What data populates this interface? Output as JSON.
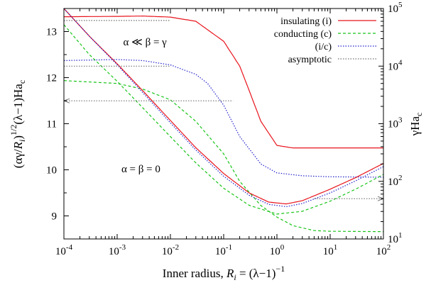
{
  "chart_data": {
    "type": "line",
    "xlabel_parts": [
      "Inner radius, ",
      "R",
      "i",
      " = (λ−1)",
      "−1"
    ],
    "ylabel_parts": [
      "(αγ/",
      "R",
      "i",
      ")",
      "1/2",
      "(λ−1)Ha",
      "c"
    ],
    "y2label_parts": [
      "γHa",
      "c"
    ],
    "x_scale": "log",
    "xlim": [
      0.0001,
      100
    ],
    "ylim": [
      8.5,
      13.5
    ],
    "y2_scale": "log",
    "y2lim": [
      10,
      100000
    ],
    "x_ticks": [
      {
        "value": 0.0001,
        "base": "10",
        "exp": "-4"
      },
      {
        "value": 0.001,
        "base": "10",
        "exp": "-3"
      },
      {
        "value": 0.01,
        "base": "10",
        "exp": "-2"
      },
      {
        "value": 0.1,
        "base": "10",
        "exp": "-1"
      },
      {
        "value": 1,
        "base": "10",
        "exp": "0"
      },
      {
        "value": 10,
        "base": "10",
        "exp": "1"
      },
      {
        "value": 100,
        "base": "10",
        "exp": "2"
      }
    ],
    "y_ticks": [
      9,
      10,
      11,
      12,
      13
    ],
    "y2_ticks": [
      {
        "value": 10,
        "base": "10",
        "exp": "1"
      },
      {
        "value": 100,
        "base": "10",
        "exp": "2"
      },
      {
        "value": 1000,
        "base": "10",
        "exp": "3"
      },
      {
        "value": 10000,
        "base": "10",
        "exp": "4"
      },
      {
        "value": 100000,
        "base": "10",
        "exp": "5"
      }
    ],
    "legend_position": "top-right",
    "legend": [
      {
        "label": "insulating (i)",
        "color": "#e8141c",
        "dash": "solid"
      },
      {
        "label": "conducting (c)",
        "color": "#18c418",
        "dash": "dashed"
      },
      {
        "label": "(i/c)",
        "color": "#2222cc",
        "dash": "dotted"
      },
      {
        "label": "asymptotic",
        "color": "#707070",
        "dash": "dotted"
      }
    ],
    "annotations": [
      {
        "text": "α ≪ β = γ",
        "x": 0.0013,
        "y": 12.7
      },
      {
        "text": "α = β = 0",
        "x": 0.0012,
        "y": 9.95
      }
    ],
    "series": [
      {
        "color": "#e8141c",
        "dash": "solid",
        "axis": "right",
        "x": [
          0.0001,
          0.001,
          0.003,
          0.01,
          0.03,
          0.1,
          0.2,
          0.3,
          0.5,
          1,
          2,
          3,
          10,
          100
        ],
        "y": [
          72000,
          73000,
          74000,
          71000,
          60000,
          27000,
          10000,
          3800,
          1100,
          420,
          380,
          380,
          380,
          380
        ]
      },
      {
        "color": "#18c418",
        "dash": "dashed",
        "axis": "right",
        "x": [
          0.0001,
          0.001,
          0.003,
          0.01,
          0.03,
          0.1,
          0.2,
          0.5,
          1,
          2,
          5,
          10,
          100
        ],
        "y": [
          5600,
          5000,
          4000,
          2600,
          1100,
          300,
          100,
          38,
          24,
          17,
          14,
          13.6,
          13.4
        ]
      },
      {
        "color": "#2222cc",
        "dash": "dotted",
        "axis": "right",
        "x": [
          0.0001,
          0.001,
          0.003,
          0.01,
          0.03,
          0.05,
          0.1,
          0.2,
          0.5,
          1,
          3,
          10,
          100
        ],
        "y": [
          12500,
          13000,
          12500,
          10500,
          7200,
          5000,
          2100,
          600,
          200,
          140,
          125,
          120,
          118
        ]
      },
      {
        "color": "#e8141c",
        "dash": "solid",
        "axis": "left",
        "x": [
          0.0001,
          0.0003,
          0.001,
          0.003,
          0.01,
          0.03,
          0.1,
          0.3,
          0.7,
          1.5,
          3,
          10,
          30,
          100
        ],
        "y": [
          13.5,
          12.9,
          12.3,
          11.72,
          11.07,
          10.48,
          9.92,
          9.5,
          9.3,
          9.26,
          9.33,
          9.58,
          9.83,
          10.14
        ]
      },
      {
        "color": "#2222cc",
        "dash": "dotted",
        "axis": "left",
        "x": [
          0.0001,
          0.0003,
          0.001,
          0.003,
          0.01,
          0.03,
          0.1,
          0.3,
          0.7,
          1.5,
          3,
          10,
          30,
          100
        ],
        "y": [
          13.5,
          12.9,
          12.28,
          11.68,
          11.02,
          10.43,
          9.86,
          9.45,
          9.25,
          9.2,
          9.27,
          9.5,
          9.76,
          10.07
        ]
      },
      {
        "color": "#18c418",
        "dash": "dashed",
        "axis": "left",
        "x": [
          0.0001,
          0.0003,
          0.001,
          0.003,
          0.01,
          0.03,
          0.1,
          0.3,
          1,
          3,
          10,
          30,
          100
        ],
        "y": [
          13.15,
          12.5,
          11.92,
          11.35,
          10.72,
          10.15,
          9.6,
          9.23,
          9.04,
          9.1,
          9.32,
          9.58,
          9.9
        ]
      },
      {
        "color": "#707070",
        "dash": "dotted",
        "axis": "right",
        "x": [
          0.0001,
          0.01
        ],
        "y": [
          62000,
          62000
        ]
      },
      {
        "color": "#707070",
        "dash": "dotted",
        "axis": "right",
        "x": [
          0.0001,
          0.01
        ],
        "y": [
          10000,
          10000
        ]
      },
      {
        "color": "#707070",
        "dash": "dotted",
        "axis": "right",
        "arrow": "start",
        "x": [
          0.0001,
          0.15
        ],
        "y": [
          2500,
          2500
        ]
      },
      {
        "color": "#707070",
        "dash": "dotted",
        "axis": "right",
        "arrow": "end",
        "x": [
          5,
          100
        ],
        "y": [
          50,
          50
        ]
      }
    ]
  }
}
